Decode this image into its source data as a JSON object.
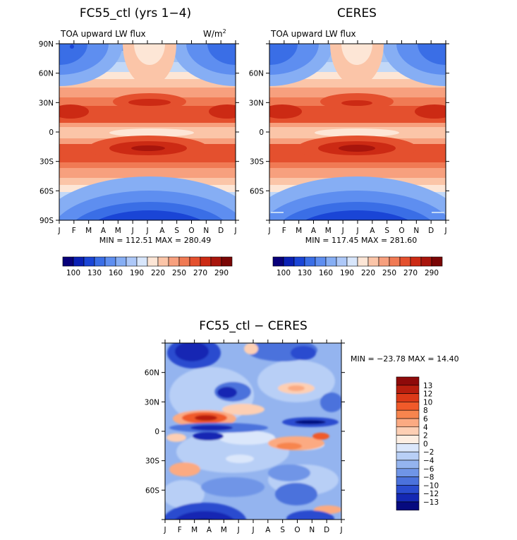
{
  "panels": [
    {
      "id": "model",
      "title": "FC55_ctl (yrs 1−4)",
      "variable": "TOA upward LW flux",
      "units": "W/m",
      "units_sup": "2",
      "stats": "MIN = 112.51 MAX = 280.49"
    },
    {
      "id": "obs",
      "title": "CERES",
      "variable": "TOA upward LW flux",
      "stats": "MIN = 117.45 MAX = 281.60"
    },
    {
      "id": "diff",
      "title": "FC55_ctl − CERES",
      "stats": "MIN = −23.78 MAX =  14.40"
    }
  ],
  "chart_data": [
    {
      "type": "heatmap",
      "title": "FC55_ctl (yrs 1-4)",
      "subtitle": "TOA upward LW flux",
      "units": "W/m2",
      "x_tick_labels": [
        "J",
        "F",
        "M",
        "A",
        "M",
        "J",
        "J",
        "A",
        "S",
        "O",
        "N",
        "D",
        "J"
      ],
      "y_tick_labels": [
        "90N",
        "60N",
        "30N",
        "0",
        "30S",
        "60S",
        "90S"
      ],
      "y_range": [
        -90,
        90
      ],
      "min": 112.51,
      "max": 280.49,
      "colorbar_ticks": [
        "100",
        "130",
        "160",
        "190",
        "220",
        "250",
        "270",
        "290"
      ],
      "colorbar_levels": [
        100,
        115,
        130,
        145,
        160,
        175,
        190,
        205,
        220,
        235,
        250,
        260,
        270,
        280,
        290
      ],
      "colorbar_colors": [
        "#08007a",
        "#0a20b4",
        "#1a45d6",
        "#3a6ee6",
        "#5e8ef0",
        "#86aef4",
        "#adc8f8",
        "#d8e6fb",
        "#fde6d6",
        "#fbc5a8",
        "#f7a07e",
        "#f07a54",
        "#e4502e",
        "#cc2a14",
        "#a8150c",
        "#7a0605"
      ]
    },
    {
      "type": "heatmap",
      "title": "CERES",
      "subtitle": "TOA upward LW flux",
      "x_tick_labels": [
        "J",
        "F",
        "M",
        "A",
        "M",
        "J",
        "J",
        "A",
        "S",
        "O",
        "N",
        "D",
        "J"
      ],
      "y_tick_labels": [
        "60N",
        "30N",
        "0",
        "30S",
        "60S"
      ],
      "y_range": [
        -90,
        90
      ],
      "min": 117.45,
      "max": 281.6,
      "colorbar_ticks": [
        "100",
        "130",
        "160",
        "190",
        "220",
        "250",
        "270",
        "290"
      ]
    },
    {
      "type": "heatmap",
      "title": "FC55_ctl - CERES",
      "x_tick_labels": [
        "J",
        "F",
        "M",
        "A",
        "M",
        "J",
        "J",
        "A",
        "S",
        "O",
        "N",
        "D",
        "J"
      ],
      "y_tick_labels": [
        "60N",
        "30N",
        "0",
        "30S",
        "60S"
      ],
      "y_range": [
        -90,
        90
      ],
      "min": -23.78,
      "max": 14.4,
      "colorbar_ticks": [
        "13",
        "12",
        "10",
        "8",
        "6",
        "4",
        "2",
        "0",
        "−2",
        "−4",
        "−6",
        "−8",
        "−10",
        "−12",
        "−13"
      ],
      "colorbar_levels": [
        13,
        12,
        10,
        8,
        6,
        4,
        2,
        0,
        -2,
        -4,
        -6,
        -8,
        -10,
        -12,
        -13
      ],
      "colorbar_colors": [
        "#8e0a0a",
        "#b81e0e",
        "#dc3a18",
        "#f05a2a",
        "#f7854e",
        "#fbaa82",
        "#fdcfb4",
        "#fdeee2",
        "#dbe7fb",
        "#b8cff6",
        "#94b4ef",
        "#6f95e7",
        "#4b72dc",
        "#2a4ccf",
        "#1428b3",
        "#060a7f"
      ]
    }
  ]
}
